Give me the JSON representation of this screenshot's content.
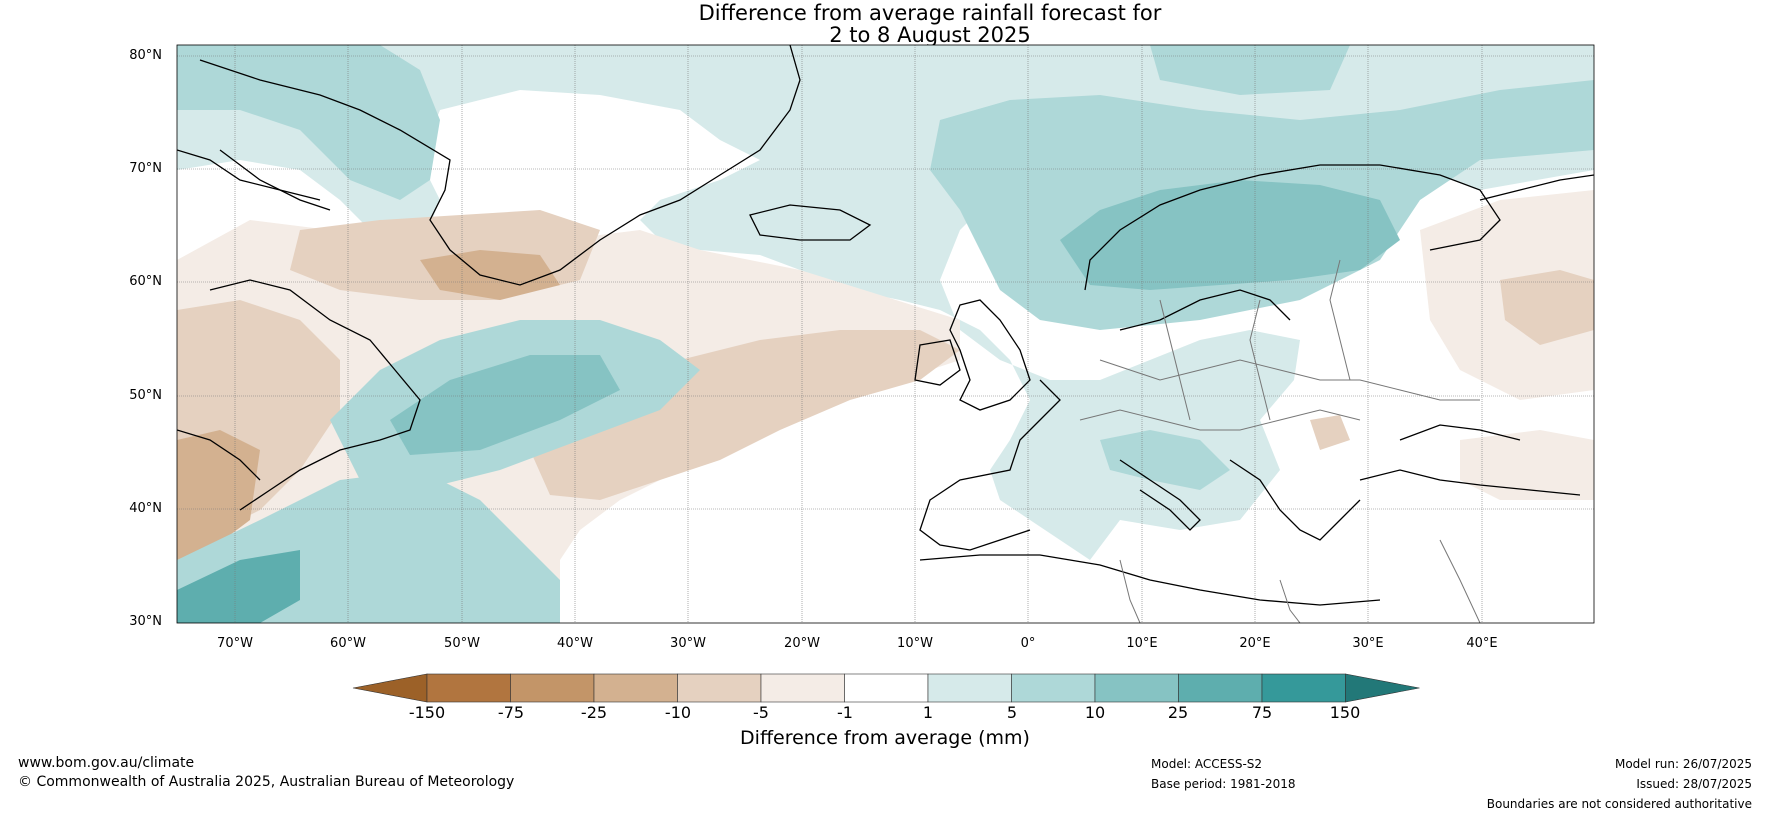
{
  "title": {
    "line1": "Difference from average rainfall forecast for",
    "line2": "2 to 8 August 2025"
  },
  "axes": {
    "lat_labels": [
      "80°N",
      "70°N",
      "60°N",
      "50°N",
      "40°N",
      "30°N"
    ],
    "lat_values": [
      80,
      70,
      60,
      50,
      40,
      30
    ],
    "lon_labels": [
      "70°W",
      "60°W",
      "50°W",
      "40°W",
      "30°W",
      "20°W",
      "10°W",
      "0°",
      "10°E",
      "20°E",
      "30°E",
      "40°E"
    ],
    "lon_values": [
      -70,
      -60,
      -50,
      -40,
      -30,
      -20,
      -10,
      0,
      10,
      20,
      30,
      40
    ],
    "lon_range": [
      -75,
      50
    ],
    "lat_range": [
      30,
      81
    ],
    "grid": true
  },
  "colorbar": {
    "label": "Difference from average (mm)",
    "ticks": [
      "-150",
      "-75",
      "-25",
      "-10",
      "-5",
      "-1",
      "1",
      "5",
      "10",
      "25",
      "75",
      "150"
    ],
    "colors": [
      "#9c6128",
      "#b1753f",
      "#c39568",
      "#d3b190",
      "#e5d1c0",
      "#f4ece6",
      "#ffffff",
      "#d6eaea",
      "#aed8d8",
      "#86c3c3",
      "#5eaeae",
      "#35999a",
      "#227878"
    ],
    "orientation": "horizontal",
    "extend": "both"
  },
  "footer": {
    "website": "www.bom.gov.au/climate",
    "copyright": "© Commonwealth of Australia 2025, Australian Bureau of Meteorology",
    "model": "Model: ACCESS-S2",
    "base_period": "Base period: 1981-2018",
    "model_run": "Model run: 26/07/2025",
    "issued": "Issued: 28/07/2025",
    "disclaimer": "Boundaries are not considered authoritative"
  }
}
